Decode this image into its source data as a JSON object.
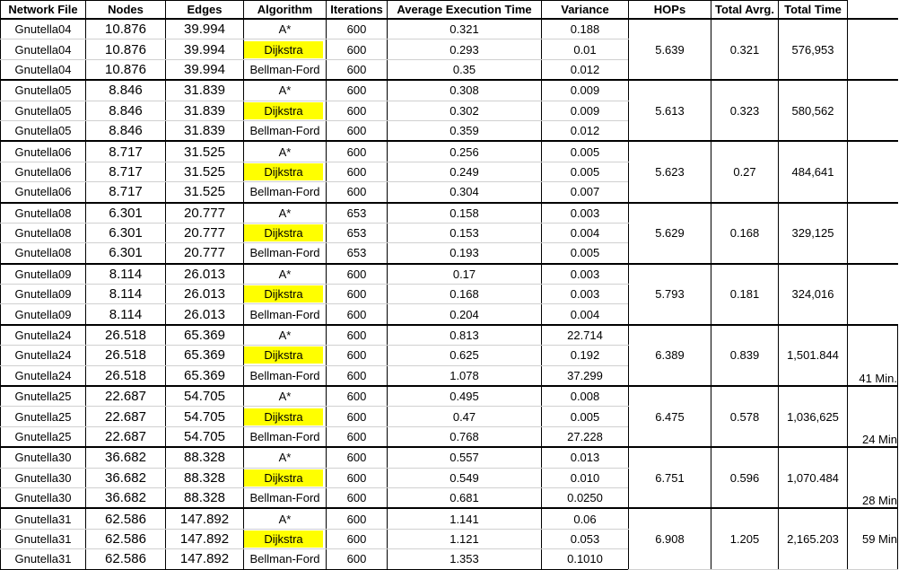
{
  "header": {
    "network_file": "Network File",
    "nodes": "Nodes",
    "edges": "Edges",
    "algorithm": "Algorithm",
    "iterations": "Iterations",
    "avg_exec_time": "Average Execution Time",
    "variance": "Variance",
    "hops": "HOPs",
    "total_avrg": "Total Avrg.",
    "total_time": "Total Time"
  },
  "groups": [
    {
      "hops": "5.639",
      "total_avrg": "0.321",
      "total_time": "576,953",
      "note": "",
      "rows": [
        {
          "file": "Gnutella04",
          "nodes": "10.876",
          "edges": "39.994",
          "algorithm": "A*",
          "iterations": "600",
          "avg": "0.321",
          "variance": "0.188"
        },
        {
          "file": "Gnutella04",
          "nodes": "10.876",
          "edges": "39.994",
          "algorithm": "Dijkstra",
          "iterations": "600",
          "avg": "0.293",
          "variance": "0.01"
        },
        {
          "file": "Gnutella04",
          "nodes": "10.876",
          "edges": "39.994",
          "algorithm": "Bellman-Ford",
          "iterations": "600",
          "avg": "0.35",
          "variance": "0.012"
        }
      ]
    },
    {
      "hops": "5.613",
      "total_avrg": "0.323",
      "total_time": "580,562",
      "note": "",
      "rows": [
        {
          "file": "Gnutella05",
          "nodes": "8.846",
          "edges": "31.839",
          "algorithm": "A*",
          "iterations": "600",
          "avg": "0.308",
          "variance": "0.009"
        },
        {
          "file": "Gnutella05",
          "nodes": "8.846",
          "edges": "31.839",
          "algorithm": "Dijkstra",
          "iterations": "600",
          "avg": "0.302",
          "variance": "0.009"
        },
        {
          "file": "Gnutella05",
          "nodes": "8.846",
          "edges": "31.839",
          "algorithm": "Bellman-Ford",
          "iterations": "600",
          "avg": "0.359",
          "variance": "0.012"
        }
      ]
    },
    {
      "hops": "5.623",
      "total_avrg": "0.27",
      "total_time": "484,641",
      "note": "",
      "rows": [
        {
          "file": "Gnutella06",
          "nodes": "8.717",
          "edges": "31.525",
          "algorithm": "A*",
          "iterations": "600",
          "avg": "0.256",
          "variance": "0.005"
        },
        {
          "file": "Gnutella06",
          "nodes": "8.717",
          "edges": "31.525",
          "algorithm": "Dijkstra",
          "iterations": "600",
          "avg": "0.249",
          "variance": "0.005"
        },
        {
          "file": "Gnutella06",
          "nodes": "8.717",
          "edges": "31.525",
          "algorithm": "Bellman-Ford",
          "iterations": "600",
          "avg": "0.304",
          "variance": "0.007"
        }
      ]
    },
    {
      "hops": "5.629",
      "total_avrg": "0.168",
      "total_time": "329,125",
      "note": "",
      "rows": [
        {
          "file": "Gnutella08",
          "nodes": "6.301",
          "edges": "20.777",
          "algorithm": "A*",
          "iterations": "653",
          "avg": "0.158",
          "variance": "0.003"
        },
        {
          "file": "Gnutella08",
          "nodes": "6.301",
          "edges": "20.777",
          "algorithm": "Dijkstra",
          "iterations": "653",
          "avg": "0.153",
          "variance": "0.004"
        },
        {
          "file": "Gnutella08",
          "nodes": "6.301",
          "edges": "20.777",
          "algorithm": "Bellman-Ford",
          "iterations": "653",
          "avg": "0.193",
          "variance": "0.005"
        }
      ]
    },
    {
      "hops": "5.793",
      "total_avrg": "0.181",
      "total_time": "324,016",
      "note": "",
      "rows": [
        {
          "file": "Gnutella09",
          "nodes": "8.114",
          "edges": "26.013",
          "algorithm": "A*",
          "iterations": "600",
          "avg": "0.17",
          "variance": "0.003"
        },
        {
          "file": "Gnutella09",
          "nodes": "8.114",
          "edges": "26.013",
          "algorithm": "Dijkstra",
          "iterations": "600",
          "avg": "0.168",
          "variance": "0.003"
        },
        {
          "file": "Gnutella09",
          "nodes": "8.114",
          "edges": "26.013",
          "algorithm": "Bellman-Ford",
          "iterations": "600",
          "avg": "0.204",
          "variance": "0.004"
        }
      ]
    },
    {
      "hops": "6.389",
      "total_avrg": "0.839",
      "total_time": "1,501.844",
      "note": "41 Min.",
      "rows": [
        {
          "file": "Gnutella24",
          "nodes": "26.518",
          "edges": "65.369",
          "algorithm": "A*",
          "iterations": "600",
          "avg": "0.813",
          "variance": "22.714"
        },
        {
          "file": "Gnutella24",
          "nodes": "26.518",
          "edges": "65.369",
          "algorithm": "Dijkstra",
          "iterations": "600",
          "avg": "0.625",
          "variance": "0.192"
        },
        {
          "file": "Gnutella24",
          "nodes": "26.518",
          "edges": "65.369",
          "algorithm": "Bellman-Ford",
          "iterations": "600",
          "avg": "1.078",
          "variance": "37.299"
        }
      ]
    },
    {
      "hops": "6.475",
      "total_avrg": "0.578",
      "total_time": "1,036,625",
      "note": "24 Min",
      "rows": [
        {
          "file": "Gnutella25",
          "nodes": "22.687",
          "edges": "54.705",
          "algorithm": "A*",
          "iterations": "600",
          "avg": "0.495",
          "variance": "0.008"
        },
        {
          "file": "Gnutella25",
          "nodes": "22.687",
          "edges": "54.705",
          "algorithm": "Dijkstra",
          "iterations": "600",
          "avg": "0.47",
          "variance": "0.005"
        },
        {
          "file": "Gnutella25",
          "nodes": "22.687",
          "edges": "54.705",
          "algorithm": "Bellman-Ford",
          "iterations": "600",
          "avg": "0.768",
          "variance": "27.228"
        }
      ]
    },
    {
      "hops": "6.751",
      "total_avrg": "0.596",
      "total_time": "1,070.484",
      "note": "28 Min",
      "rows": [
        {
          "file": "Gnutella30",
          "nodes": "36.682",
          "edges": "88.328",
          "algorithm": "A*",
          "iterations": "600",
          "avg": "0.557",
          "variance": "0.013"
        },
        {
          "file": "Gnutella30",
          "nodes": "36.682",
          "edges": "88.328",
          "algorithm": "Dijkstra",
          "iterations": "600",
          "avg": "0.549",
          "variance": "0.010"
        },
        {
          "file": "Gnutella30",
          "nodes": "36.682",
          "edges": "88.328",
          "algorithm": "Bellman-Ford",
          "iterations": "600",
          "avg": "0.681",
          "variance": "0.0250"
        }
      ]
    },
    {
      "hops": "6.908",
      "total_avrg": "1.205",
      "total_time": "2,165.203",
      "note": "59 Min",
      "rows": [
        {
          "file": "Gnutella31",
          "nodes": "62.586",
          "edges": "147.892",
          "algorithm": "A*",
          "iterations": "600",
          "avg": "1.141",
          "variance": "0.06"
        },
        {
          "file": "Gnutella31",
          "nodes": "62.586",
          "edges": "147.892",
          "algorithm": "Dijkstra",
          "iterations": "600",
          "avg": "1.121",
          "variance": "0.053"
        },
        {
          "file": "Gnutella31",
          "nodes": "62.586",
          "edges": "147.892",
          "algorithm": "Bellman-Ford",
          "iterations": "600",
          "avg": "1.353",
          "variance": "0.1010"
        }
      ]
    }
  ],
  "colors": {
    "highlight": "#ffff00",
    "border": "#000000",
    "gridline": "#d0d0d0"
  }
}
